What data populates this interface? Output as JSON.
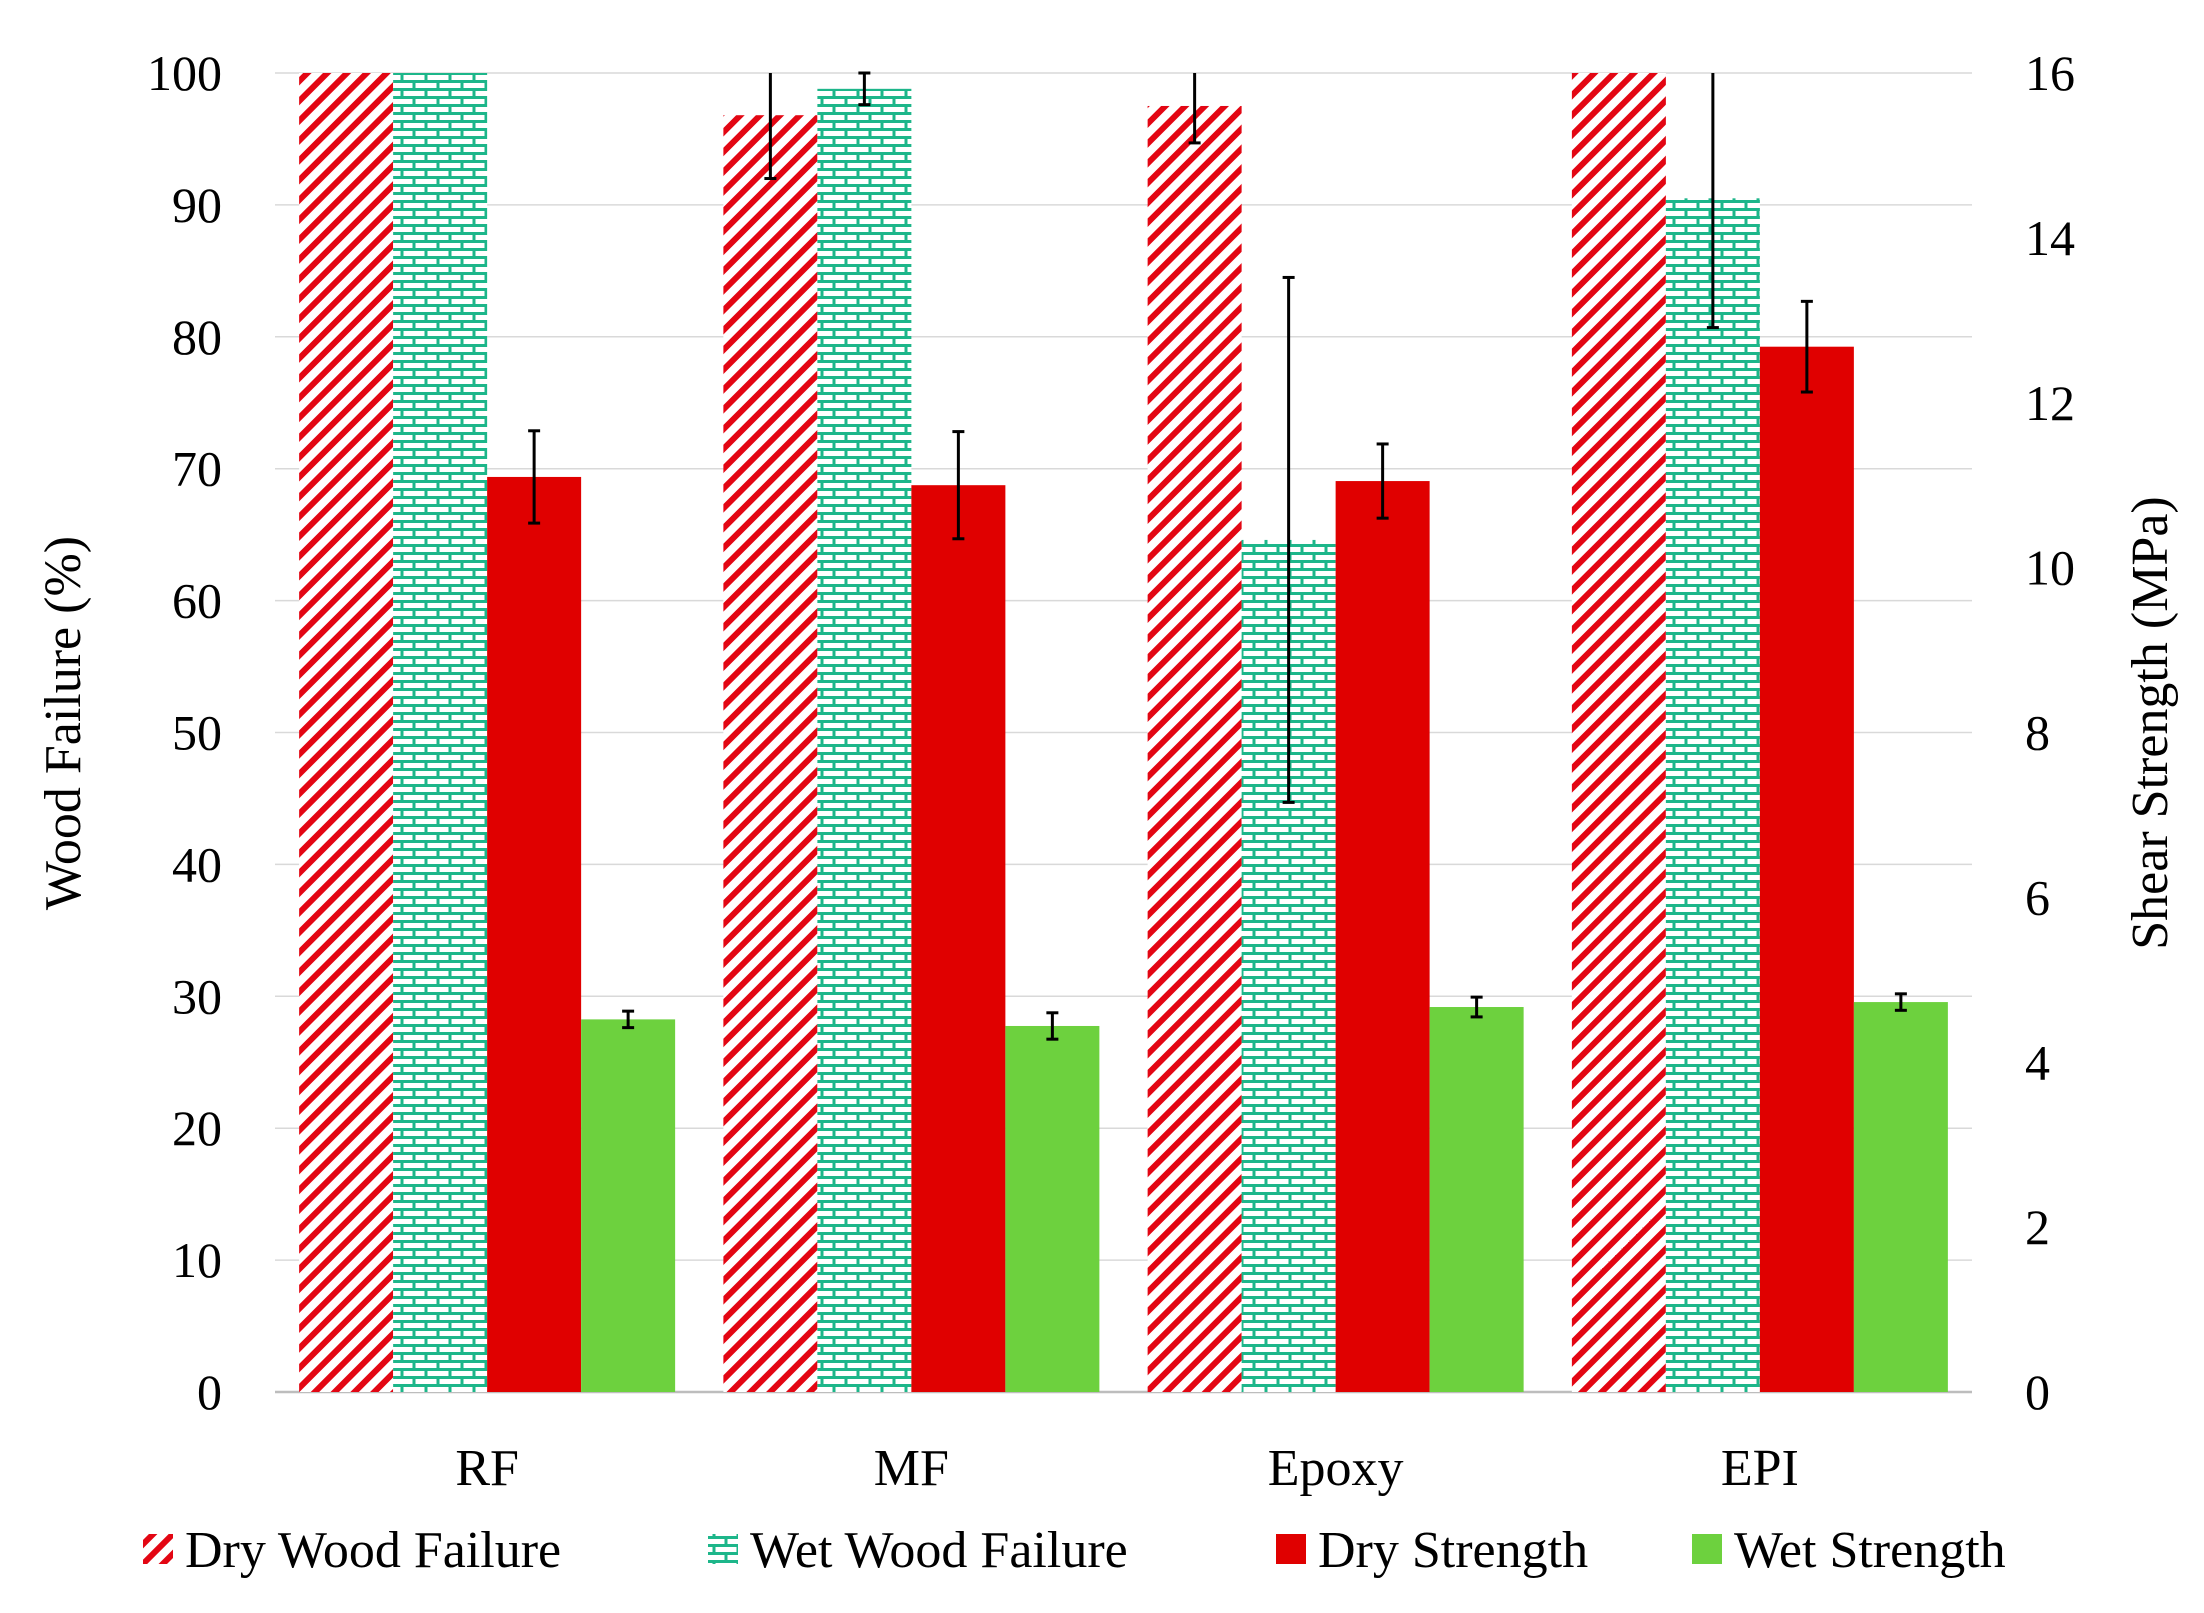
{
  "chart_data": {
    "type": "bar",
    "categories": [
      "RF",
      "MF",
      "Epoxy",
      "EPI"
    ],
    "y_left": {
      "label": "Wood Failure (%)",
      "range": [
        0,
        100
      ],
      "ticks": [
        0,
        10,
        20,
        30,
        40,
        50,
        60,
        70,
        80,
        90,
        100
      ]
    },
    "y_right": {
      "label": "Shear Strength (MPa)",
      "range": [
        0,
        16
      ],
      "ticks": [
        0,
        2,
        4,
        6,
        8,
        10,
        12,
        14,
        16
      ]
    },
    "grid": true,
    "legend_position": "bottom",
    "series": [
      {
        "name": "Dry Wood Failure",
        "axis": "left",
        "pattern": "diagonal-hatch",
        "color": "#e30613",
        "values": [
          100,
          96.8,
          97.5,
          100
        ],
        "errors": [
          null,
          4.8,
          2.8,
          null
        ]
      },
      {
        "name": "Wet Wood Failure",
        "axis": "left",
        "pattern": "brick",
        "color": "#1db68a",
        "values": [
          100,
          98.8,
          64.6,
          90.5
        ],
        "errors": [
          null,
          1.2,
          19.9,
          9.8
        ]
      },
      {
        "name": "Dry Strength",
        "axis": "right",
        "pattern": "solid",
        "color": "#e00000",
        "values": [
          11.1,
          11.0,
          11.05,
          12.68
        ],
        "errors": [
          0.56,
          0.65,
          0.45,
          0.55
        ]
      },
      {
        "name": "Wet Strength",
        "axis": "right",
        "pattern": "solid",
        "color": "#6dd13e",
        "values": [
          4.52,
          4.44,
          4.67,
          4.73
        ],
        "errors": [
          0.1,
          0.16,
          0.12,
          0.1
        ]
      }
    ]
  }
}
